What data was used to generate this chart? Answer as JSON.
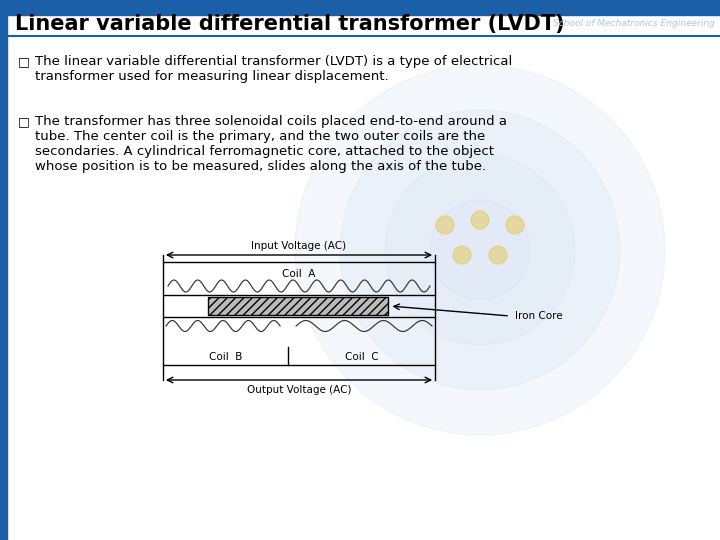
{
  "title": "Linear variable differential transformer (LVDT)",
  "watermark_text": "School of Mechatronics Engineering",
  "bg_color": "#ffffff",
  "title_color": "#000000",
  "title_fontsize": 15,
  "left_bar_color": "#1a5fa8",
  "bullet1_text": "The linear variable differential transformer (LVDT) is a type of electrical\ntransformer used for measuring linear displacement.",
  "bullet2_text": "The transformer has three solenoidal coils placed end-to-end around a\ntube. The center coil is the primary, and the two outer coils are the\nsecondaries. A cylindrical ferromagnetic core, attached to the object\nwhose position is to be measured, slides along the axis of the tube.",
  "diagram_input_label": "Input Voltage (AC)",
  "diagram_coilA_label": "Coil  A",
  "diagram_coilB_label": "Coil  B",
  "diagram_coilC_label": "Coil  C",
  "diagram_ironcore_label": "Iron Core",
  "diagram_output_label": "Output Voltage (AC)",
  "text_color": "#000000",
  "bullet_fontsize": 9.5,
  "diagram_fontsize": 7.5,
  "watermark_color": "#c5d8f0",
  "coil_color": "#333333",
  "iron_core_hatch": "////",
  "iron_core_facecolor": "#bbbbbb"
}
